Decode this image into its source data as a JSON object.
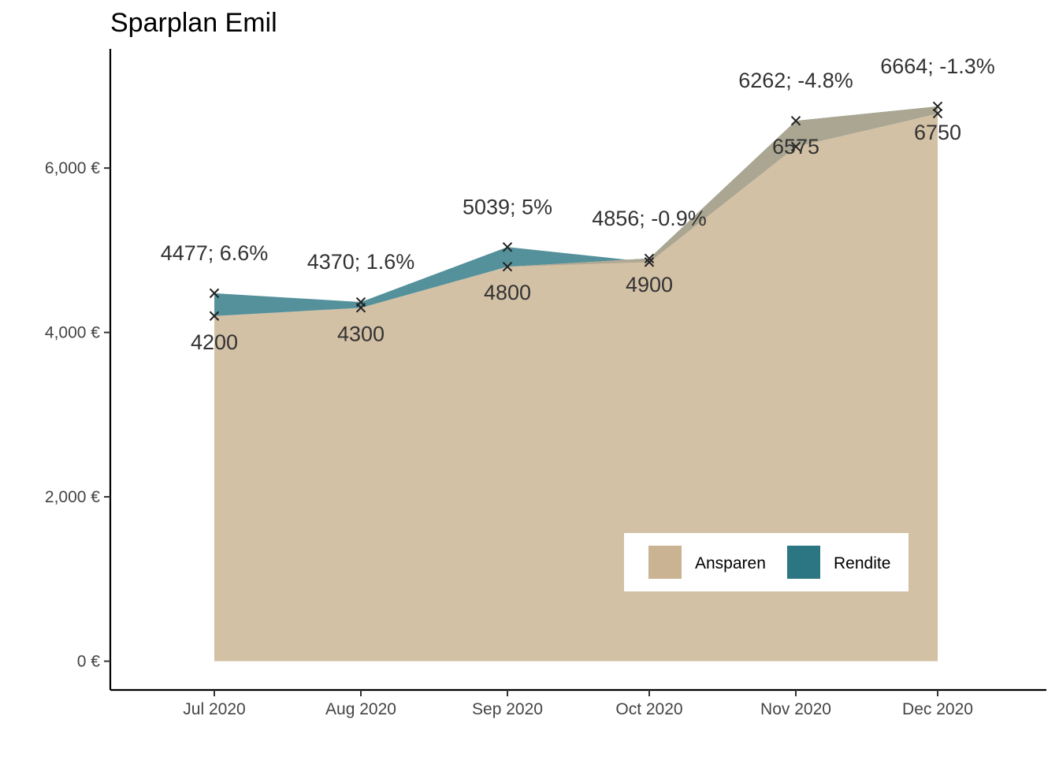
{
  "chart_data": {
    "type": "area",
    "title": "Sparplan Emil",
    "xlabel": "",
    "ylabel": "",
    "categories": [
      "Jul 2020",
      "Aug 2020",
      "Sep 2020",
      "Oct 2020",
      "Nov 2020",
      "Dec 2020"
    ],
    "x_dates": [
      "2020-07-01",
      "2020-08-01",
      "2020-09-01",
      "2020-10-01",
      "2020-11-01",
      "2020-12-01"
    ],
    "series": [
      {
        "name": "Ansparen",
        "values": [
          4200,
          4300,
          4800,
          4900,
          6575,
          6750
        ]
      },
      {
        "name": "Rendite",
        "values": [
          4477,
          4370,
          5039,
          4856,
          6262,
          6664
        ]
      }
    ],
    "upper_labels": [
      "4477; 6.6%",
      "4370; 1.6%",
      "5039; 5%",
      "4856; -0.9%",
      "6262; -4.8%",
      "6664; -1.3%"
    ],
    "lower_labels": [
      "4200",
      "4300",
      "4800",
      "4900",
      "6575",
      "6750"
    ],
    "y_ticks": [
      0,
      2000,
      4000,
      6000
    ],
    "y_tick_labels": [
      "0 €",
      "2,000 €",
      "4,000 €",
      "6,000 €"
    ],
    "ylim": [
      -350,
      7450
    ],
    "xlim": [
      "2020-06-09",
      "2020-12-24"
    ],
    "colors": {
      "ansparen": "#c9b392",
      "rendite": "#2b7682",
      "overlap": "#b0a892"
    },
    "legend": {
      "position": "bottom-right",
      "items": [
        "Ansparen",
        "Rendite"
      ]
    },
    "grid": false
  }
}
